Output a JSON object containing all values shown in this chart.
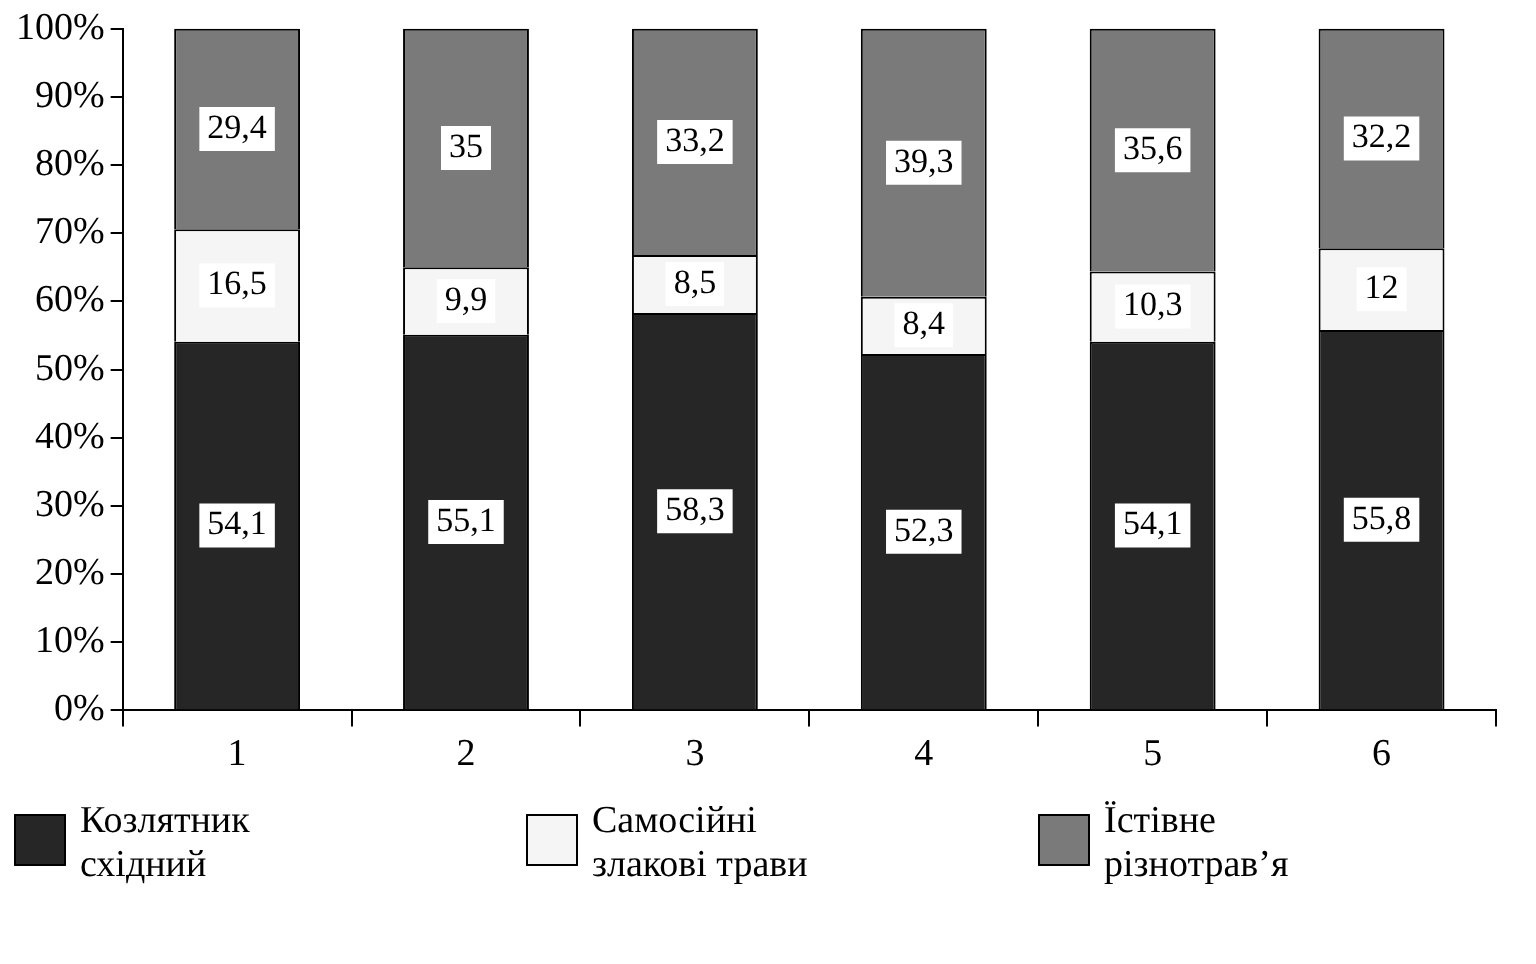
{
  "chart_data": {
    "type": "bar",
    "stacked": true,
    "categories": [
      "1",
      "2",
      "3",
      "4",
      "5",
      "6"
    ],
    "series": [
      {
        "name": "Козлятник східний",
        "color": "#262626",
        "values": [
          54.1,
          55.1,
          58.3,
          52.3,
          54.1,
          55.8
        ],
        "value_labels": [
          "54,1",
          "55,1",
          "58,3",
          "52,3",
          "54,1",
          "55,8"
        ]
      },
      {
        "name": "Самосійні злакові трави",
        "color": "#f5f5f5",
        "values": [
          16.5,
          9.9,
          8.5,
          8.4,
          10.3,
          12
        ],
        "value_labels": [
          "16,5",
          "9,9",
          "8,5",
          "8,4",
          "10,3",
          "12"
        ]
      },
      {
        "name": "Їстівне різнотрав’я",
        "color": "#7a7a7a",
        "values": [
          29.4,
          35,
          33.2,
          39.3,
          35.6,
          32.2
        ],
        "value_labels": [
          "29,4",
          "35",
          "33,2",
          "39,3",
          "35,6",
          "32,2"
        ]
      }
    ],
    "ylim": [
      0,
      100
    ],
    "yticks": [
      {
        "value": 0,
        "label": "0%"
      },
      {
        "value": 10,
        "label": "10%"
      },
      {
        "value": 20,
        "label": "20%"
      },
      {
        "value": 30,
        "label": "30%"
      },
      {
        "value": 40,
        "label": "40%"
      },
      {
        "value": 50,
        "label": "50%"
      },
      {
        "value": 60,
        "label": "60%"
      },
      {
        "value": 70,
        "label": "70%"
      },
      {
        "value": 80,
        "label": "80%"
      },
      {
        "value": 90,
        "label": "90%"
      },
      {
        "value": 100,
        "label": "100%"
      }
    ],
    "grid": false,
    "legend": "bottom"
  }
}
